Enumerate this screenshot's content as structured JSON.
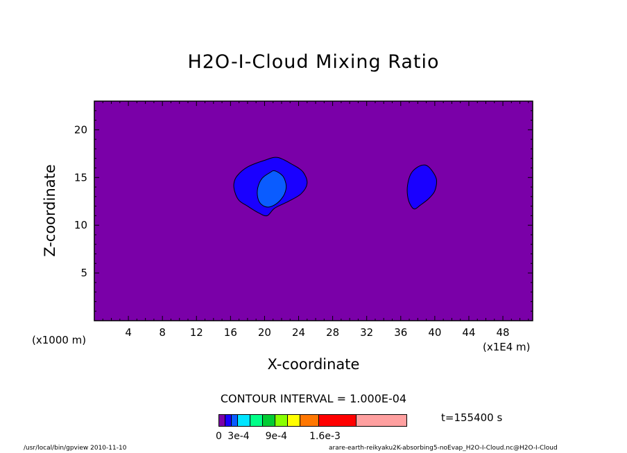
{
  "chart_data": {
    "type": "contour",
    "title": "H2O-I-Cloud Mixing Ratio",
    "xlabel": "X-coordinate",
    "ylabel": "Z-coordinate",
    "x_unit_label": "(x1000 m)",
    "x_scale_label": "(x1E4 m)",
    "xlim": [
      0,
      51.5
    ],
    "ylim": [
      0,
      23
    ],
    "xticks": [
      4,
      8,
      12,
      16,
      20,
      24,
      28,
      32,
      36,
      40,
      44,
      48
    ],
    "yticks": [
      5,
      10,
      15,
      20
    ],
    "contour_interval": "CONTOUR INTERVAL = 1.000E-04",
    "time": "t=155400 s",
    "levels": [
      0,
      0.0001,
      0.0002,
      0.0003,
      0.0005,
      0.0007,
      0.0009,
      0.0011,
      0.0013,
      0.0016,
      0.0022,
      0.003
    ],
    "colorbar": {
      "colors": [
        "#7a00a8",
        "#1a00ff",
        "#0a5cff",
        "#00e5ff",
        "#00ff88",
        "#00cc33",
        "#88ff00",
        "#ffff00",
        "#ff7700",
        "#ff0000",
        "#ffa0a0"
      ],
      "tick_labels": [
        "0",
        "3e-4",
        "9e-4",
        "1.6e-3"
      ]
    },
    "features": [
      {
        "name": "left-cloud-outer",
        "level": 0.0001,
        "color": "#1a00ff",
        "outline": [
          [
            16.8,
            15.2
          ],
          [
            18.0,
            16.1
          ],
          [
            20.0,
            16.8
          ],
          [
            21.5,
            17.1
          ],
          [
            23.2,
            16.4
          ],
          [
            24.5,
            15.6
          ],
          [
            25.0,
            14.4
          ],
          [
            24.3,
            13.3
          ],
          [
            22.8,
            12.5
          ],
          [
            21.2,
            11.8
          ],
          [
            20.3,
            11.0
          ],
          [
            19.3,
            11.3
          ],
          [
            18.0,
            12.0
          ],
          [
            17.0,
            12.6
          ],
          [
            16.5,
            13.5
          ],
          [
            16.4,
            14.4
          ]
        ]
      },
      {
        "name": "left-cloud-inner",
        "level": 0.0002,
        "color": "#0a5cff",
        "outline": [
          [
            19.7,
            14.9
          ],
          [
            20.6,
            15.5
          ],
          [
            21.2,
            15.7
          ],
          [
            22.1,
            15.2
          ],
          [
            22.5,
            14.4
          ],
          [
            22.5,
            13.7
          ],
          [
            22.1,
            12.9
          ],
          [
            21.3,
            12.2
          ],
          [
            20.4,
            11.9
          ],
          [
            19.6,
            12.2
          ],
          [
            19.2,
            12.9
          ],
          [
            19.2,
            13.9
          ]
        ]
      },
      {
        "name": "right-cloud",
        "level": 0.0001,
        "color": "#1a00ff",
        "outline": [
          [
            36.8,
            14.2
          ],
          [
            37.2,
            15.4
          ],
          [
            38.0,
            16.1
          ],
          [
            38.9,
            16.3
          ],
          [
            39.6,
            15.8
          ],
          [
            40.2,
            14.8
          ],
          [
            40.0,
            13.6
          ],
          [
            39.3,
            12.8
          ],
          [
            38.3,
            12.1
          ],
          [
            37.6,
            11.7
          ],
          [
            37.1,
            12.2
          ],
          [
            36.8,
            13.1
          ]
        ]
      }
    ],
    "background_color": "#7a00a8",
    "grid": false
  },
  "footer": {
    "left": "/usr/local/bin/gpview  2010-11-10",
    "right": "arare-earth-reikyaku2K-absorbing5-noEvap_H2O-I-Cloud.nc@H2O-I-Cloud"
  }
}
